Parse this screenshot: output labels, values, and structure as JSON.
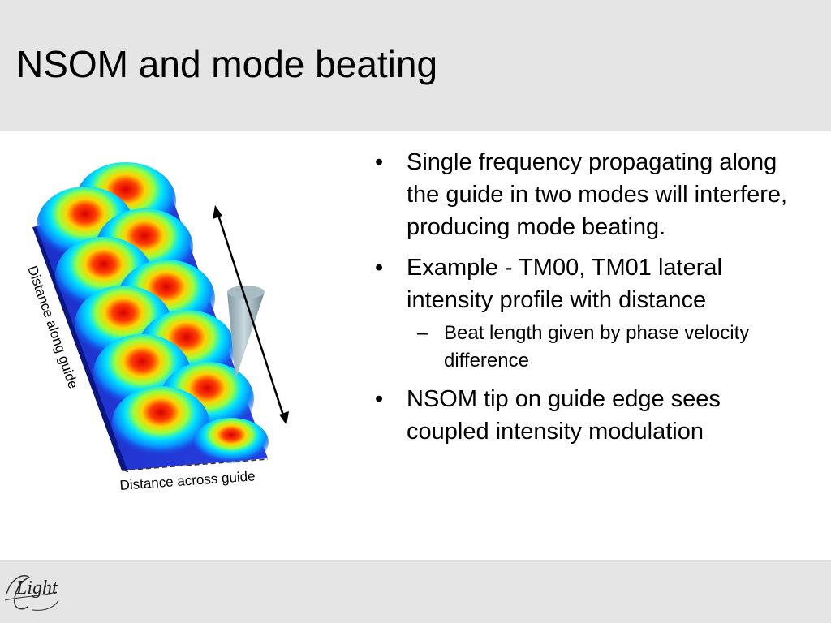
{
  "slide": {
    "title": "NSOM and mode beating",
    "bullets": [
      {
        "text": "Single frequency propagating along the guide in two modes will interfere, producing mode beating."
      },
      {
        "text": "Example - TM00, TM01 lateral intensity profile with distance",
        "sub": "Beat length given by phase velocity difference"
      },
      {
        "text": "NSOM tip on guide edge sees coupled intensity modulation"
      }
    ]
  },
  "figure": {
    "axis_along": "Distance along guide",
    "axis_across": "Distance across guide"
  },
  "logo": {
    "text": "Light"
  },
  "colors": {
    "header_bg": "#e5e5e5",
    "footer_bg": "#e5e5e5"
  }
}
